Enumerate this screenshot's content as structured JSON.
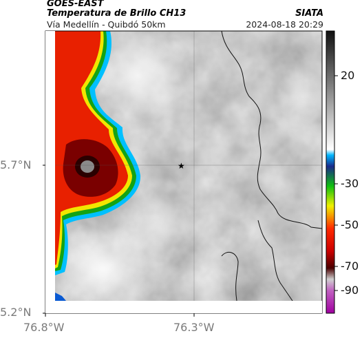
{
  "header": {
    "agency": "GOES-EAST",
    "product": "Temperatura de Brillo CH13",
    "location": "Vía Medellín - Quibdó 50km",
    "brand": "SIATA",
    "datetime": "2024-08-18 20:29"
  },
  "axes": {
    "lat_labels": [
      "5.7°N",
      "5.2°N"
    ],
    "lon_labels": [
      "76.8°W",
      "76.3°W"
    ]
  },
  "colorbar": {
    "labels": [
      "20",
      "-30",
      "-50",
      "-70",
      "-90"
    ]
  },
  "map": {
    "center_marker": "star-icon"
  }
}
